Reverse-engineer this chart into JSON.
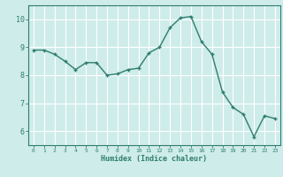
{
  "x": [
    0,
    1,
    2,
    3,
    4,
    5,
    6,
    7,
    8,
    9,
    10,
    11,
    12,
    13,
    14,
    15,
    16,
    17,
    18,
    19,
    20,
    21,
    22,
    23
  ],
  "y": [
    8.9,
    8.9,
    8.75,
    8.5,
    8.2,
    8.45,
    8.45,
    8.0,
    8.05,
    8.2,
    8.25,
    8.8,
    9.0,
    9.7,
    10.05,
    10.1,
    9.2,
    8.75,
    7.4,
    6.85,
    6.6,
    5.8,
    6.55,
    6.45
  ],
  "line_color": "#2e7d6e",
  "marker": "+",
  "marker_size": 3,
  "bg_color": "#ceecea",
  "grid_color": "#ffffff",
  "axis_color": "#2e7d6e",
  "tick_color": "#2e7d6e",
  "xlabel": "Humidex (Indice chaleur)",
  "xlabel_color": "#2e7d6e",
  "ylim": [
    5.5,
    10.5
  ],
  "yticks": [
    6,
    7,
    8,
    9,
    10
  ],
  "xlim": [
    -0.5,
    23.5
  ],
  "xticks": [
    0,
    1,
    2,
    3,
    4,
    5,
    6,
    7,
    8,
    9,
    10,
    11,
    12,
    13,
    14,
    15,
    16,
    17,
    18,
    19,
    20,
    21,
    22,
    23
  ]
}
